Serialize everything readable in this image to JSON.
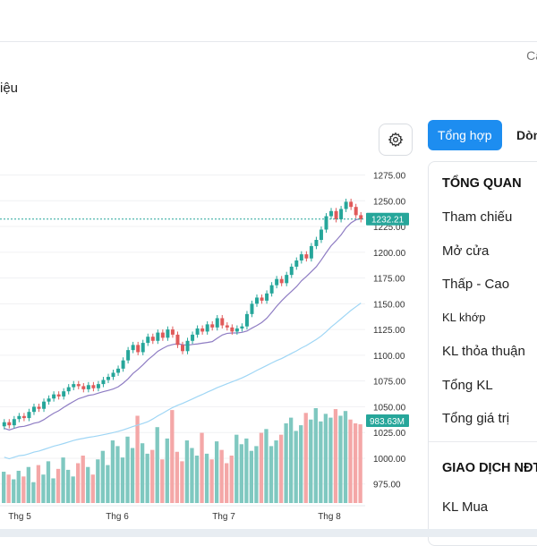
{
  "header": {
    "update_label": "Cậ",
    "title_fragment": "iệu"
  },
  "toolbar": {
    "settings_icon": "gear-icon",
    "tabs": [
      {
        "label": "Tổng hợp",
        "active": true
      },
      {
        "label": "Dòn",
        "active": false
      }
    ]
  },
  "colors": {
    "up": "#26a69a",
    "down": "#f08c8c",
    "ma_short": "#8e7cc3",
    "ma_long": "#9fd6f5",
    "accent": "#1d8df0"
  },
  "chart_data": {
    "type": "candlestick",
    "x_tick_labels": [
      "Thg 5",
      "Thg 6",
      "Thg 7",
      "Thg 8"
    ],
    "y_tick_labels": [
      "1275.00",
      "1250.00",
      "1225.00",
      "1200.00",
      "1175.00",
      "1150.00",
      "1125.00",
      "1100.00",
      "1075.00",
      "1050.00",
      "1025.00",
      "1000.00",
      "975.00"
    ],
    "y_range": [
      960,
      1285
    ],
    "last_price_label": "1232.21",
    "last_price": 1232.21,
    "last_volume_label": "983.63M",
    "grid": true,
    "closes": [
      1035,
      1032,
      1038,
      1041,
      1039,
      1045,
      1050,
      1048,
      1055,
      1058,
      1062,
      1060,
      1065,
      1069,
      1072,
      1070,
      1067,
      1071,
      1068,
      1072,
      1076,
      1079,
      1083,
      1087,
      1095,
      1105,
      1110,
      1103,
      1112,
      1118,
      1114,
      1122,
      1117,
      1125,
      1120,
      1110,
      1104,
      1114,
      1120,
      1126,
      1123,
      1130,
      1127,
      1136,
      1129,
      1127,
      1123,
      1126,
      1128,
      1140,
      1150,
      1156,
      1153,
      1160,
      1168,
      1174,
      1170,
      1178,
      1186,
      1192,
      1198,
      1194,
      1206,
      1212,
      1222,
      1235,
      1240,
      1232,
      1242,
      1249,
      1244,
      1236,
      1232
    ],
    "volume_heights": [
      0.33,
      0.3,
      0.25,
      0.34,
      0.28,
      0.38,
      0.22,
      0.4,
      0.3,
      0.44,
      0.26,
      0.36,
      0.48,
      0.35,
      0.28,
      0.42,
      0.5,
      0.38,
      0.3,
      0.46,
      0.55,
      0.4,
      0.66,
      0.6,
      0.48,
      0.7,
      0.58,
      0.92,
      0.63,
      0.52,
      0.56,
      0.8,
      0.46,
      0.68,
      0.98,
      0.54,
      0.44,
      0.66,
      0.58,
      0.5,
      0.74,
      0.52,
      0.46,
      0.65,
      0.56,
      0.42,
      0.5,
      0.72,
      0.62,
      0.68,
      0.55,
      0.6,
      0.74,
      0.78,
      0.6,
      0.66,
      0.72,
      0.84,
      0.9,
      0.76,
      0.82,
      0.95,
      0.88,
      1.0,
      0.86,
      0.94,
      0.9,
      0.99,
      0.92,
      0.97,
      0.88,
      0.84,
      0.83
    ]
  },
  "overview": {
    "heading": "TỔNG QUAN",
    "rows": [
      {
        "label": "Tham chiếu"
      },
      {
        "label": "Mở cửa"
      },
      {
        "label": "Thấp - Cao"
      },
      {
        "label": "KL khớp"
      },
      {
        "label": "KL thỏa thuận"
      },
      {
        "label": "Tổng KL"
      },
      {
        "label": "Tổng giá trị"
      }
    ]
  },
  "foreign": {
    "heading": "GIAO DỊCH NĐT",
    "rows": [
      {
        "label": "KL Mua"
      }
    ]
  }
}
